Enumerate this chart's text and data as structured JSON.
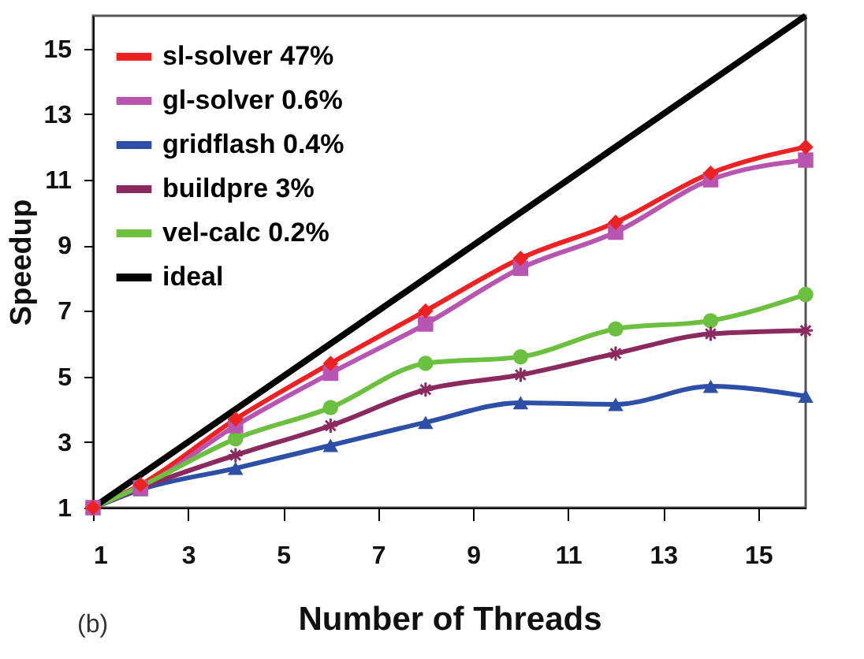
{
  "chart_data": {
    "type": "line",
    "xlabel": "Number of Threads",
    "ylabel": "Speedup",
    "annotations": [
      "(b)"
    ],
    "x": [
      1,
      2,
      4,
      6,
      8,
      10,
      12,
      14,
      16
    ],
    "xlim": [
      1,
      16
    ],
    "ylim": [
      1,
      16
    ],
    "xticks": [
      1,
      3,
      5,
      7,
      9,
      11,
      13,
      15
    ],
    "yticks": [
      1,
      3,
      5,
      7,
      9,
      11,
      13,
      15
    ],
    "grid": false,
    "legend": "top left",
    "line_style": "solid",
    "series": [
      {
        "name": "sl-solver 47%",
        "color": "#ee2222",
        "marker": "diamond",
        "values": [
          1,
          1.7,
          3.7,
          5.4,
          7.0,
          8.6,
          9.7,
          11.2,
          12.0
        ]
      },
      {
        "name": "gl-solver 0.6%",
        "color": "#b855b0",
        "marker": "square",
        "values": [
          1,
          1.6,
          3.5,
          5.1,
          6.6,
          8.3,
          9.4,
          11.0,
          11.6
        ]
      },
      {
        "name": "gridflash 0.4%",
        "color": "#2e4fa8",
        "marker": "triangle",
        "values": [
          1,
          1.55,
          2.2,
          2.9,
          3.6,
          4.2,
          4.15,
          4.7,
          4.4
        ]
      },
      {
        "name": "buildpre 3%",
        "color": "#8a2a5e",
        "marker": "cross",
        "values": [
          1,
          1.6,
          2.6,
          3.5,
          4.6,
          5.05,
          5.7,
          6.3,
          6.4
        ]
      },
      {
        "name": "vel-calc 0.2%",
        "color": "#6cc040",
        "marker": "circle",
        "values": [
          1,
          1.65,
          3.1,
          4.05,
          5.4,
          5.6,
          6.45,
          6.7,
          7.5
        ]
      },
      {
        "name": "ideal",
        "color": "#000000",
        "marker": "none",
        "x": [
          1,
          16
        ],
        "values": [
          1,
          16
        ]
      }
    ]
  }
}
